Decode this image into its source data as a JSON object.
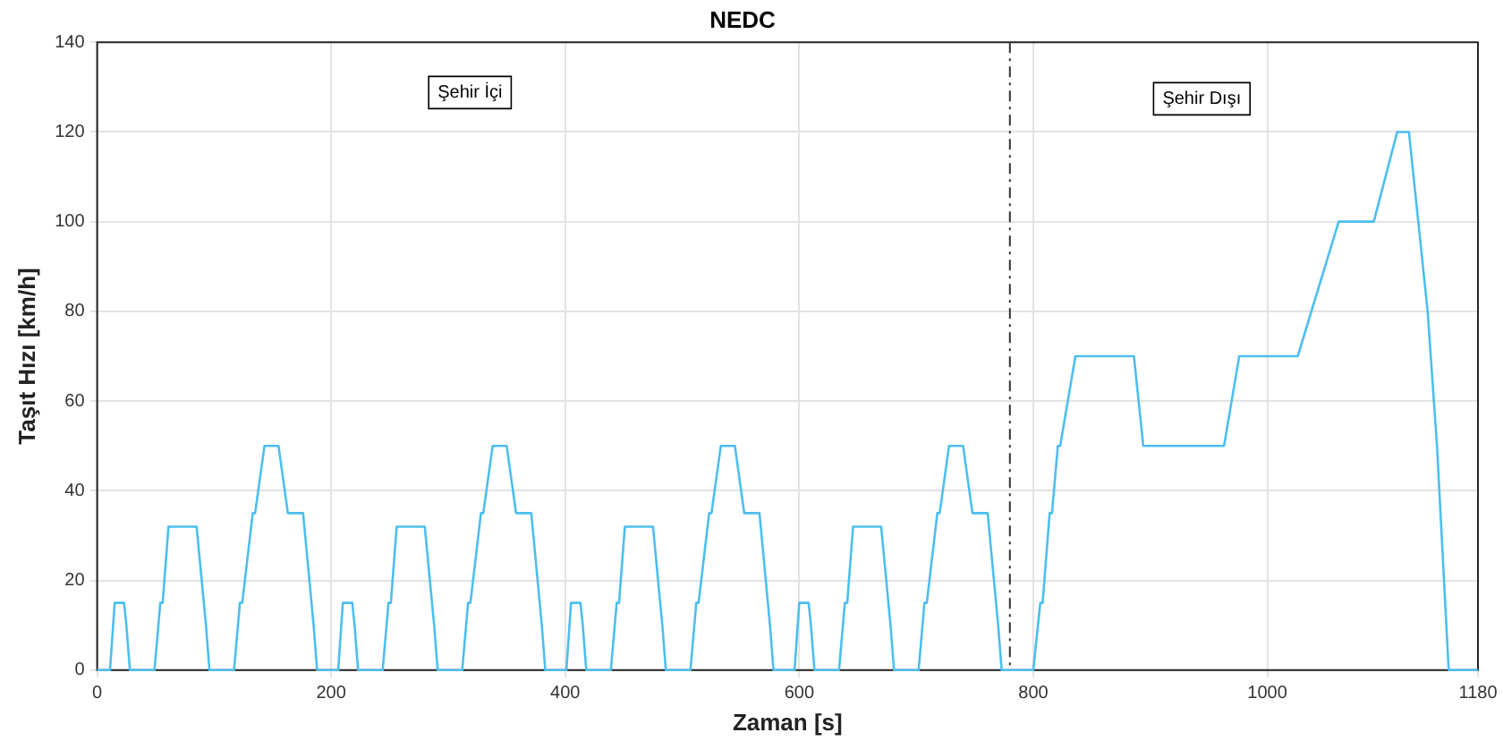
{
  "chart_data": {
    "type": "line",
    "title": "NEDC",
    "xlabel": "Zaman [s]",
    "ylabel": "Taşıt Hızı [km/h]",
    "x": [
      0,
      11,
      15,
      23,
      25,
      28,
      49,
      54,
      56,
      61,
      85,
      93,
      96,
      117,
      122,
      124,
      133,
      135,
      143,
      155,
      163,
      176,
      185,
      188,
      195,
      206,
      210,
      218,
      220,
      223,
      244,
      249,
      251,
      256,
      280,
      288,
      291,
      312,
      317,
      319,
      328,
      330,
      338,
      350,
      358,
      371,
      380,
      383,
      390,
      401,
      405,
      413,
      415,
      418,
      439,
      444,
      446,
      451,
      475,
      483,
      486,
      507,
      512,
      514,
      523,
      525,
      533,
      545,
      553,
      566,
      575,
      578,
      585,
      596,
      600,
      608,
      610,
      613,
      634,
      639,
      641,
      646,
      670,
      678,
      681,
      702,
      707,
      709,
      718,
      720,
      728,
      740,
      748,
      761,
      770,
      773,
      800,
      806,
      808,
      814,
      816,
      821,
      823,
      836,
      886,
      894,
      963,
      976,
      1026,
      1061,
      1091,
      1111,
      1121,
      1137,
      1145,
      1155,
      1180
    ],
    "series": [
      {
        "color": "#4dbeee",
        "values": [
          0,
          0,
          15,
          15,
          10,
          0,
          0,
          15,
          15,
          32,
          32,
          10,
          0,
          0,
          15,
          15,
          35,
          35,
          50,
          50,
          35,
          35,
          10,
          0,
          0,
          0,
          15,
          15,
          10,
          0,
          0,
          15,
          15,
          32,
          32,
          10,
          0,
          0,
          15,
          15,
          35,
          35,
          50,
          50,
          35,
          35,
          10,
          0,
          0,
          0,
          15,
          15,
          10,
          0,
          0,
          15,
          15,
          32,
          32,
          10,
          0,
          0,
          15,
          15,
          35,
          35,
          50,
          50,
          35,
          35,
          10,
          0,
          0,
          0,
          15,
          15,
          10,
          0,
          0,
          15,
          15,
          32,
          32,
          10,
          0,
          0,
          15,
          15,
          35,
          35,
          50,
          50,
          35,
          35,
          10,
          0,
          0,
          15,
          15,
          35,
          35,
          50,
          50,
          70,
          70,
          50,
          50,
          70,
          70,
          100,
          100,
          120,
          120,
          80,
          50,
          0,
          0
        ]
      }
    ],
    "xlim": [
      0,
      1180
    ],
    "xticks": [
      0,
      200,
      400,
      600,
      800,
      1000,
      1180
    ],
    "ylim": [
      0,
      140
    ],
    "yticks": [
      0,
      20,
      40,
      60,
      80,
      100,
      120,
      140
    ],
    "grid": true,
    "legend": false,
    "marker": "none",
    "line_style": "solid",
    "ref_lines": [
      {
        "axis": "x",
        "value": 780,
        "color": "#333333",
        "line_style": "dashdot"
      }
    ],
    "annotations": [
      "Şehir İçi",
      "Şehir Dışı"
    ]
  }
}
